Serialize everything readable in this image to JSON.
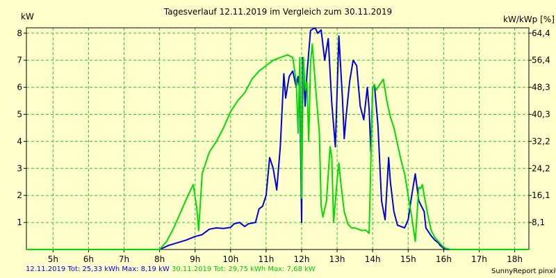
{
  "chart_data": {
    "type": "line",
    "title": "Tagesverlauf 12.11.2019 im Vergleich zum 30.11.2019",
    "ylabel_left": "kW",
    "ylabel_right": "kW/kWp [%]",
    "x_ticks": [
      "5h",
      "6h",
      "7h",
      "8h",
      "9h",
      "10h",
      "11h",
      "12h",
      "13h",
      "14h",
      "15h",
      "16h",
      "17h",
      "18h"
    ],
    "y_ticks_left": [
      "1",
      "2",
      "3",
      "4",
      "5",
      "6",
      "7",
      "8"
    ],
    "y_ticks_right": [
      "8,1",
      "16,1",
      "24,2",
      "32,2",
      "40,3",
      "48,3",
      "56,4",
      "64,4"
    ],
    "xlim": [
      4.25,
      18.4
    ],
    "ylim": [
      0,
      8.2
    ],
    "grid": true,
    "series": [
      {
        "name": "12.11.2019",
        "color": "#0000dd",
        "x": [
          4.25,
          8.0,
          8.25,
          8.5,
          8.75,
          9.0,
          9.2,
          9.4,
          9.6,
          9.8,
          10.0,
          10.1,
          10.25,
          10.4,
          10.5,
          10.7,
          10.8,
          10.9,
          11.0,
          11.1,
          11.2,
          11.3,
          11.4,
          11.5,
          11.55,
          11.65,
          11.75,
          11.85,
          11.9,
          11.95,
          12.0,
          12.03,
          12.1,
          12.15,
          12.25,
          12.35,
          12.4,
          12.45,
          12.55,
          12.65,
          12.75,
          12.85,
          12.95,
          13.05,
          13.15,
          13.2,
          13.25,
          13.35,
          13.45,
          13.55,
          13.65,
          13.75,
          13.85,
          13.9,
          13.95,
          14.0,
          14.05,
          14.15,
          14.25,
          14.35,
          14.45,
          14.5,
          14.6,
          14.7,
          14.8,
          14.9,
          15.0,
          15.1,
          15.2,
          15.3,
          15.45,
          15.5,
          15.65,
          15.75,
          15.85,
          15.9,
          16.0,
          16.1,
          16.2,
          16.3,
          18.4
        ],
        "values": [
          0,
          0,
          0.15,
          0.25,
          0.35,
          0.48,
          0.55,
          0.75,
          0.8,
          0.78,
          0.82,
          0.95,
          1.0,
          0.85,
          0.95,
          1.0,
          1.5,
          1.6,
          2.0,
          3.4,
          3.0,
          2.2,
          3.8,
          6.5,
          5.6,
          6.4,
          6.6,
          6.0,
          6.4,
          5.8,
          1.0,
          7.1,
          5.3,
          6.5,
          8.1,
          8.19,
          8.15,
          8.0,
          8.12,
          7.0,
          7.8,
          5.4,
          3.8,
          7.9,
          5.6,
          4.1,
          4.9,
          6.2,
          7.0,
          6.8,
          5.3,
          4.8,
          6.0,
          5.2,
          3.6,
          6.0,
          6.1,
          4.6,
          1.8,
          1.1,
          3.4,
          2.5,
          1.4,
          0.9,
          0.85,
          0.8,
          1.1,
          2.0,
          2.8,
          1.8,
          1.4,
          0.8,
          0.5,
          0.35,
          0.25,
          0.15,
          0.05,
          0,
          0,
          0,
          0
        ]
      },
      {
        "name": "30.11.2019",
        "color": "#00dd00",
        "x": [
          4.25,
          8.0,
          8.2,
          8.4,
          8.6,
          8.8,
          8.95,
          9.05,
          9.1,
          9.2,
          9.4,
          9.6,
          9.8,
          10.0,
          10.2,
          10.4,
          10.6,
          10.8,
          11.0,
          11.2,
          11.4,
          11.6,
          11.75,
          11.85,
          11.9,
          11.95,
          12.0,
          12.05,
          12.1,
          12.15,
          12.2,
          12.25,
          12.3,
          12.4,
          12.5,
          12.55,
          12.6,
          12.7,
          12.8,
          12.85,
          12.9,
          13.0,
          13.05,
          13.1,
          13.2,
          13.3,
          13.4,
          13.5,
          13.6,
          13.7,
          13.8,
          13.9,
          14.0,
          14.05,
          14.1,
          14.2,
          14.3,
          14.4,
          14.5,
          14.6,
          14.7,
          14.8,
          14.9,
          15.0,
          15.1,
          15.2,
          15.3,
          15.35,
          15.4,
          15.45,
          15.55,
          15.65,
          15.75,
          15.85,
          15.95,
          16.05,
          16.2,
          18.4
        ],
        "values": [
          0,
          0,
          0.3,
          0.8,
          1.4,
          2.0,
          2.4,
          1.5,
          0.7,
          2.8,
          3.6,
          4.0,
          4.5,
          5.1,
          5.5,
          5.8,
          6.3,
          6.6,
          6.8,
          7.0,
          7.1,
          7.2,
          7.1,
          6.2,
          4.3,
          7.1,
          1.9,
          7.1,
          5.9,
          6.2,
          4.0,
          6.9,
          7.6,
          5.9,
          4.3,
          1.6,
          1.2,
          1.8,
          3.8,
          3.4,
          1.0,
          2.6,
          3.2,
          2.5,
          1.4,
          0.95,
          0.8,
          0.8,
          0.75,
          0.7,
          0.72,
          0.6,
          6.0,
          6.1,
          5.9,
          6.1,
          6.3,
          5.5,
          4.9,
          4.5,
          3.9,
          3.3,
          2.8,
          2.0,
          1.2,
          0.3,
          2.3,
          2.25,
          2.4,
          2.0,
          1.3,
          0.7,
          0.45,
          0.3,
          0.15,
          0.05,
          0,
          0
        ]
      }
    ]
  },
  "footer": {
    "blue_text": "12.11.2019 Tot: 25,33 kWh Max: 8,19 kW",
    "green_text": "30.11.2019 Tot: 29,75 kWh Max: 7,68 kW",
    "credit": "SunnyReport pinxit"
  }
}
